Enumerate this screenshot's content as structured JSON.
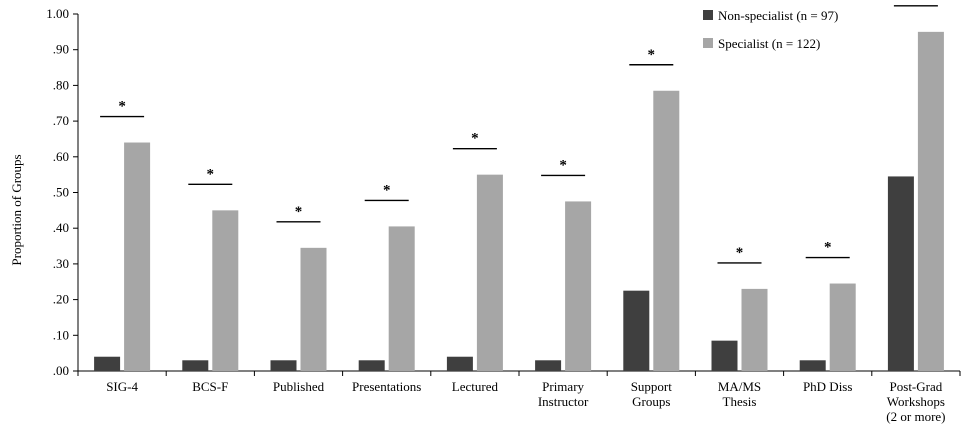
{
  "chart_data": {
    "type": "bar",
    "title": "",
    "xlabel": "",
    "ylabel": "Proportion of Groups",
    "ylim": [
      0,
      1.0
    ],
    "yticks": [
      ".00",
      ".10",
      ".20",
      ".30",
      ".40",
      ".50",
      ".60",
      ".70",
      ".80",
      ".90",
      "1.00"
    ],
    "categories": [
      [
        "SIG-4"
      ],
      [
        "BCS-F"
      ],
      [
        "Published"
      ],
      [
        "Presentations"
      ],
      [
        "Lectured"
      ],
      [
        "Primary",
        "Instructor"
      ],
      [
        "Support",
        "Groups"
      ],
      [
        "MA/MS",
        "Thesis"
      ],
      [
        "PhD Diss"
      ],
      [
        "Post-Grad",
        "Workshops",
        "(2 or more)"
      ]
    ],
    "series": [
      {
        "name": "Non-specialist (n = 97)",
        "color": "#3f3f3f",
        "values": [
          0.04,
          0.03,
          0.03,
          0.03,
          0.04,
          0.03,
          0.225,
          0.085,
          0.03,
          0.545
        ]
      },
      {
        "name": "Specialist (n = 122)",
        "color": "#a6a6a6",
        "values": [
          0.64,
          0.45,
          0.345,
          0.405,
          0.55,
          0.475,
          0.785,
          0.23,
          0.245,
          0.95
        ]
      }
    ],
    "significance_marker": "*",
    "significant": [
      true,
      true,
      true,
      true,
      true,
      true,
      true,
      true,
      true,
      true
    ],
    "grid": false,
    "legend_position": "top-right"
  }
}
